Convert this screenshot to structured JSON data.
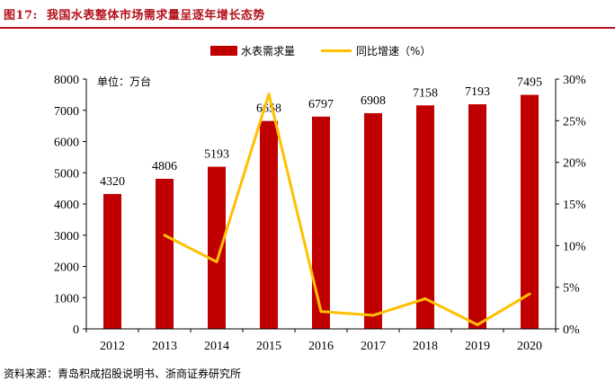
{
  "figure": {
    "number": "图17:",
    "title": "我国水表整体市场需求量呈逐年增长态势",
    "source": "资料来源：青岛积成招股说明书、浙商证券研究所"
  },
  "colors": {
    "bar": "#c00000",
    "line": "#ffc000",
    "title": "#b3121b"
  },
  "chart_data": {
    "type": "bar",
    "categories": [
      "2012",
      "2013",
      "2014",
      "2015",
      "2016",
      "2017",
      "2018",
      "2019",
      "2020"
    ],
    "unit_label": "单位：万台",
    "series": [
      {
        "name": "水表需求量",
        "type": "bar",
        "axis": "left",
        "values": [
          4320,
          4806,
          5193,
          6658,
          6797,
          6908,
          7158,
          7193,
          7495
        ],
        "labels": [
          "4320",
          "4806",
          "5193",
          "6658",
          "6797",
          "6908",
          "7158",
          "7193",
          "7495"
        ]
      },
      {
        "name": "同比增速（%）",
        "type": "line",
        "axis": "right",
        "values": [
          null,
          11.25,
          8.05,
          28.21,
          2.09,
          1.63,
          3.62,
          0.49,
          4.2
        ]
      }
    ],
    "y_left": {
      "min": 0,
      "max": 8000,
      "ticks": [
        "0",
        "1000",
        "2000",
        "3000",
        "4000",
        "5000",
        "6000",
        "7000",
        "8000"
      ]
    },
    "y_right": {
      "min": 0,
      "max": 30,
      "ticks": [
        "0%",
        "5%",
        "10%",
        "15%",
        "20%",
        "25%",
        "30%"
      ]
    },
    "legend_position": "top-center",
    "grid": false
  }
}
